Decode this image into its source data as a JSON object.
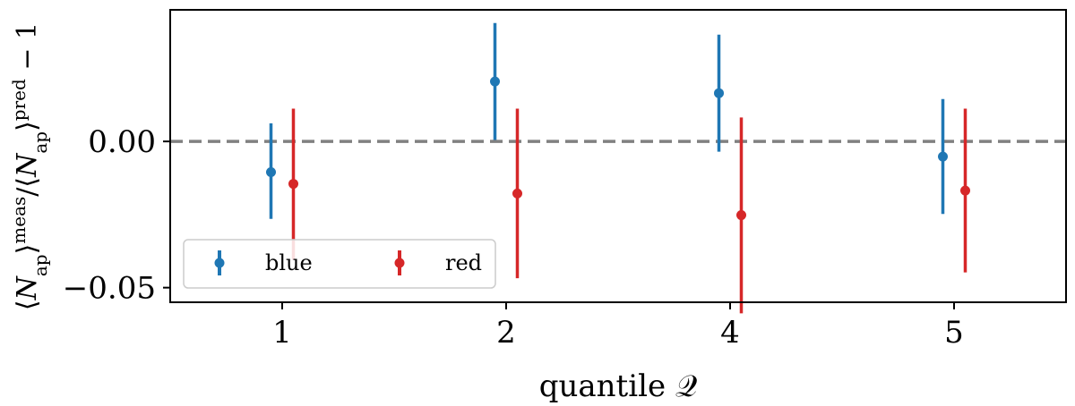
{
  "chart_data": {
    "type": "scatter",
    "xlabel": "quantile 𝒬",
    "ylabel_parts": {
      "open1": "⟨",
      "n1": "N",
      "sub1": "ap",
      "close1": "⟩",
      "sup1": "meas",
      "slash": "/⟨",
      "n2": "N",
      "sub2": "ap",
      "close2": "⟩",
      "sup2": "pred",
      "tail": " − 1"
    },
    "categories": [
      "1",
      "2",
      "4",
      "5"
    ],
    "ylim": [
      -0.055,
      0.045
    ],
    "yticks": [
      {
        "value": 0.0,
        "label": "0.00"
      },
      {
        "value": -0.05,
        "label": "−0.05"
      }
    ],
    "reference_line": {
      "y": 0.0,
      "style": "dashed",
      "color": "#808080"
    },
    "series": [
      {
        "name": "blue",
        "color": "#1f77b4",
        "offset": -0.05,
        "values": [
          -0.0105,
          0.0205,
          0.0165,
          -0.0052
        ],
        "lower": [
          -0.0265,
          0.0005,
          -0.0035,
          -0.0248
        ],
        "upper": [
          0.0062,
          0.0405,
          0.0365,
          0.0145
        ]
      },
      {
        "name": "red",
        "color": "#d62728",
        "offset": 0.05,
        "values": [
          -0.0145,
          -0.0178,
          -0.0252,
          -0.0168
        ],
        "lower": [
          -0.0405,
          -0.0468,
          -0.0588,
          -0.0448
        ],
        "upper": [
          0.0112,
          0.0112,
          0.0082,
          0.0112
        ]
      }
    ],
    "legend": {
      "location": "lower-left",
      "columns": 2
    },
    "grid": false
  }
}
